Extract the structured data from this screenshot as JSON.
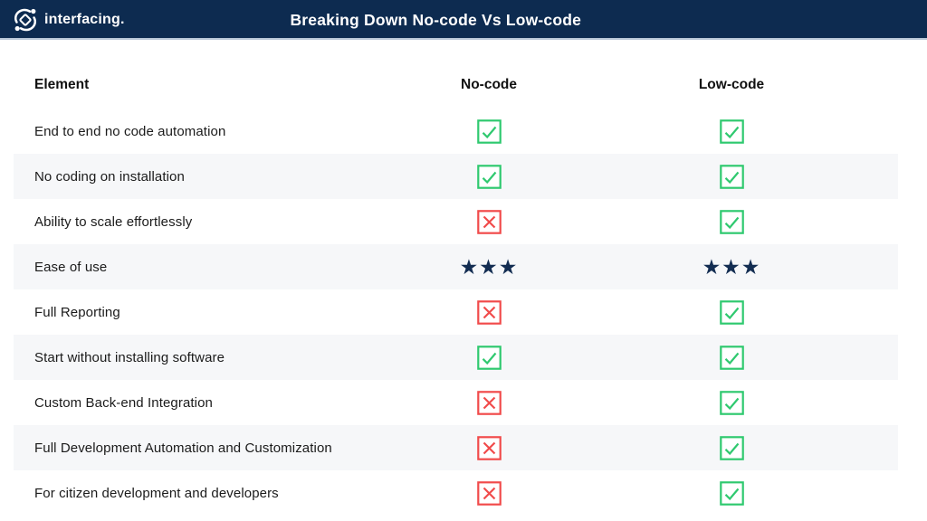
{
  "header": {
    "brand": "interfacing.",
    "title": "Breaking Down No-code Vs Low-code"
  },
  "table": {
    "columns": {
      "element": "Element",
      "no_code": "No-code",
      "low_code": "Low-code"
    },
    "stars_glyph": "★★★",
    "rows": [
      {
        "label": "End to end no code automation",
        "no_code": "check",
        "low_code": "check"
      },
      {
        "label": "No coding on installation",
        "no_code": "check",
        "low_code": "check"
      },
      {
        "label": "Ability to scale effortlessly",
        "no_code": "cross",
        "low_code": "check"
      },
      {
        "label": "Ease of use",
        "no_code": "stars",
        "low_code": "stars"
      },
      {
        "label": "Full Reporting",
        "no_code": "cross",
        "low_code": "check"
      },
      {
        "label": "Start without installing software",
        "no_code": "check",
        "low_code": "check"
      },
      {
        "label": "Custom Back-end Integration",
        "no_code": "cross",
        "low_code": "check"
      },
      {
        "label": "Full Development Automation and Customization",
        "no_code": "cross",
        "low_code": "check"
      },
      {
        "label": "For citizen development and developers",
        "no_code": "cross",
        "low_code": "check"
      }
    ]
  },
  "colors": {
    "topbar_bg": "#0d2b50",
    "topbar_underline": "#b8c7d7",
    "check_green": "#2fc96f",
    "cross_red": "#f14b4b",
    "star_navy": "#132d52",
    "stripe_gray": "#f6f7f9"
  }
}
